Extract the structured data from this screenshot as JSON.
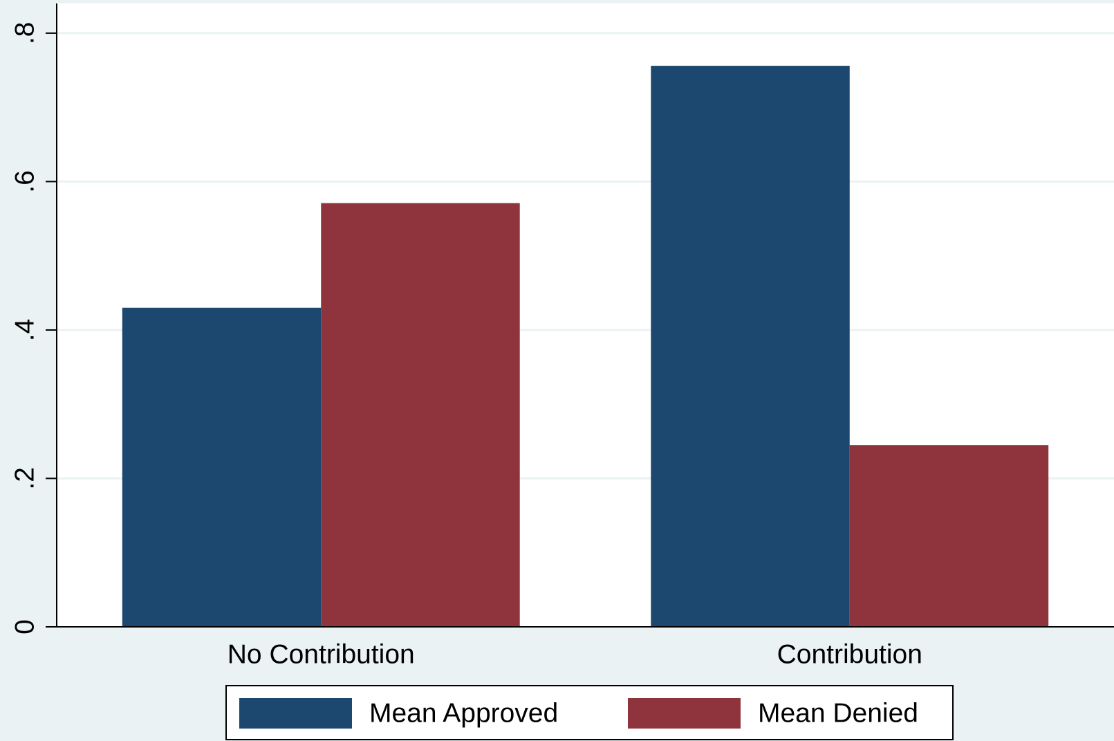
{
  "chart_data": {
    "type": "bar",
    "categories": [
      "No Contribution",
      "Contribution"
    ],
    "series": [
      {
        "name": "Mean Approved",
        "color": "#1c476f",
        "values": [
          0.43,
          0.756
        ]
      },
      {
        "name": "Mean Denied",
        "color": "#8f343c",
        "values": [
          0.571,
          0.245
        ]
      }
    ],
    "ylim": [
      0,
      0.84
    ],
    "yticks": [
      0,
      {
        "value": 0.2,
        "label": ".2"
      },
      {
        "value": 0.4,
        "label": ".4"
      },
      {
        "value": 0.6,
        "label": ".6"
      },
      {
        "value": 0.8,
        "label": ".8"
      }
    ],
    "grid": true,
    "legend": "bottom"
  }
}
